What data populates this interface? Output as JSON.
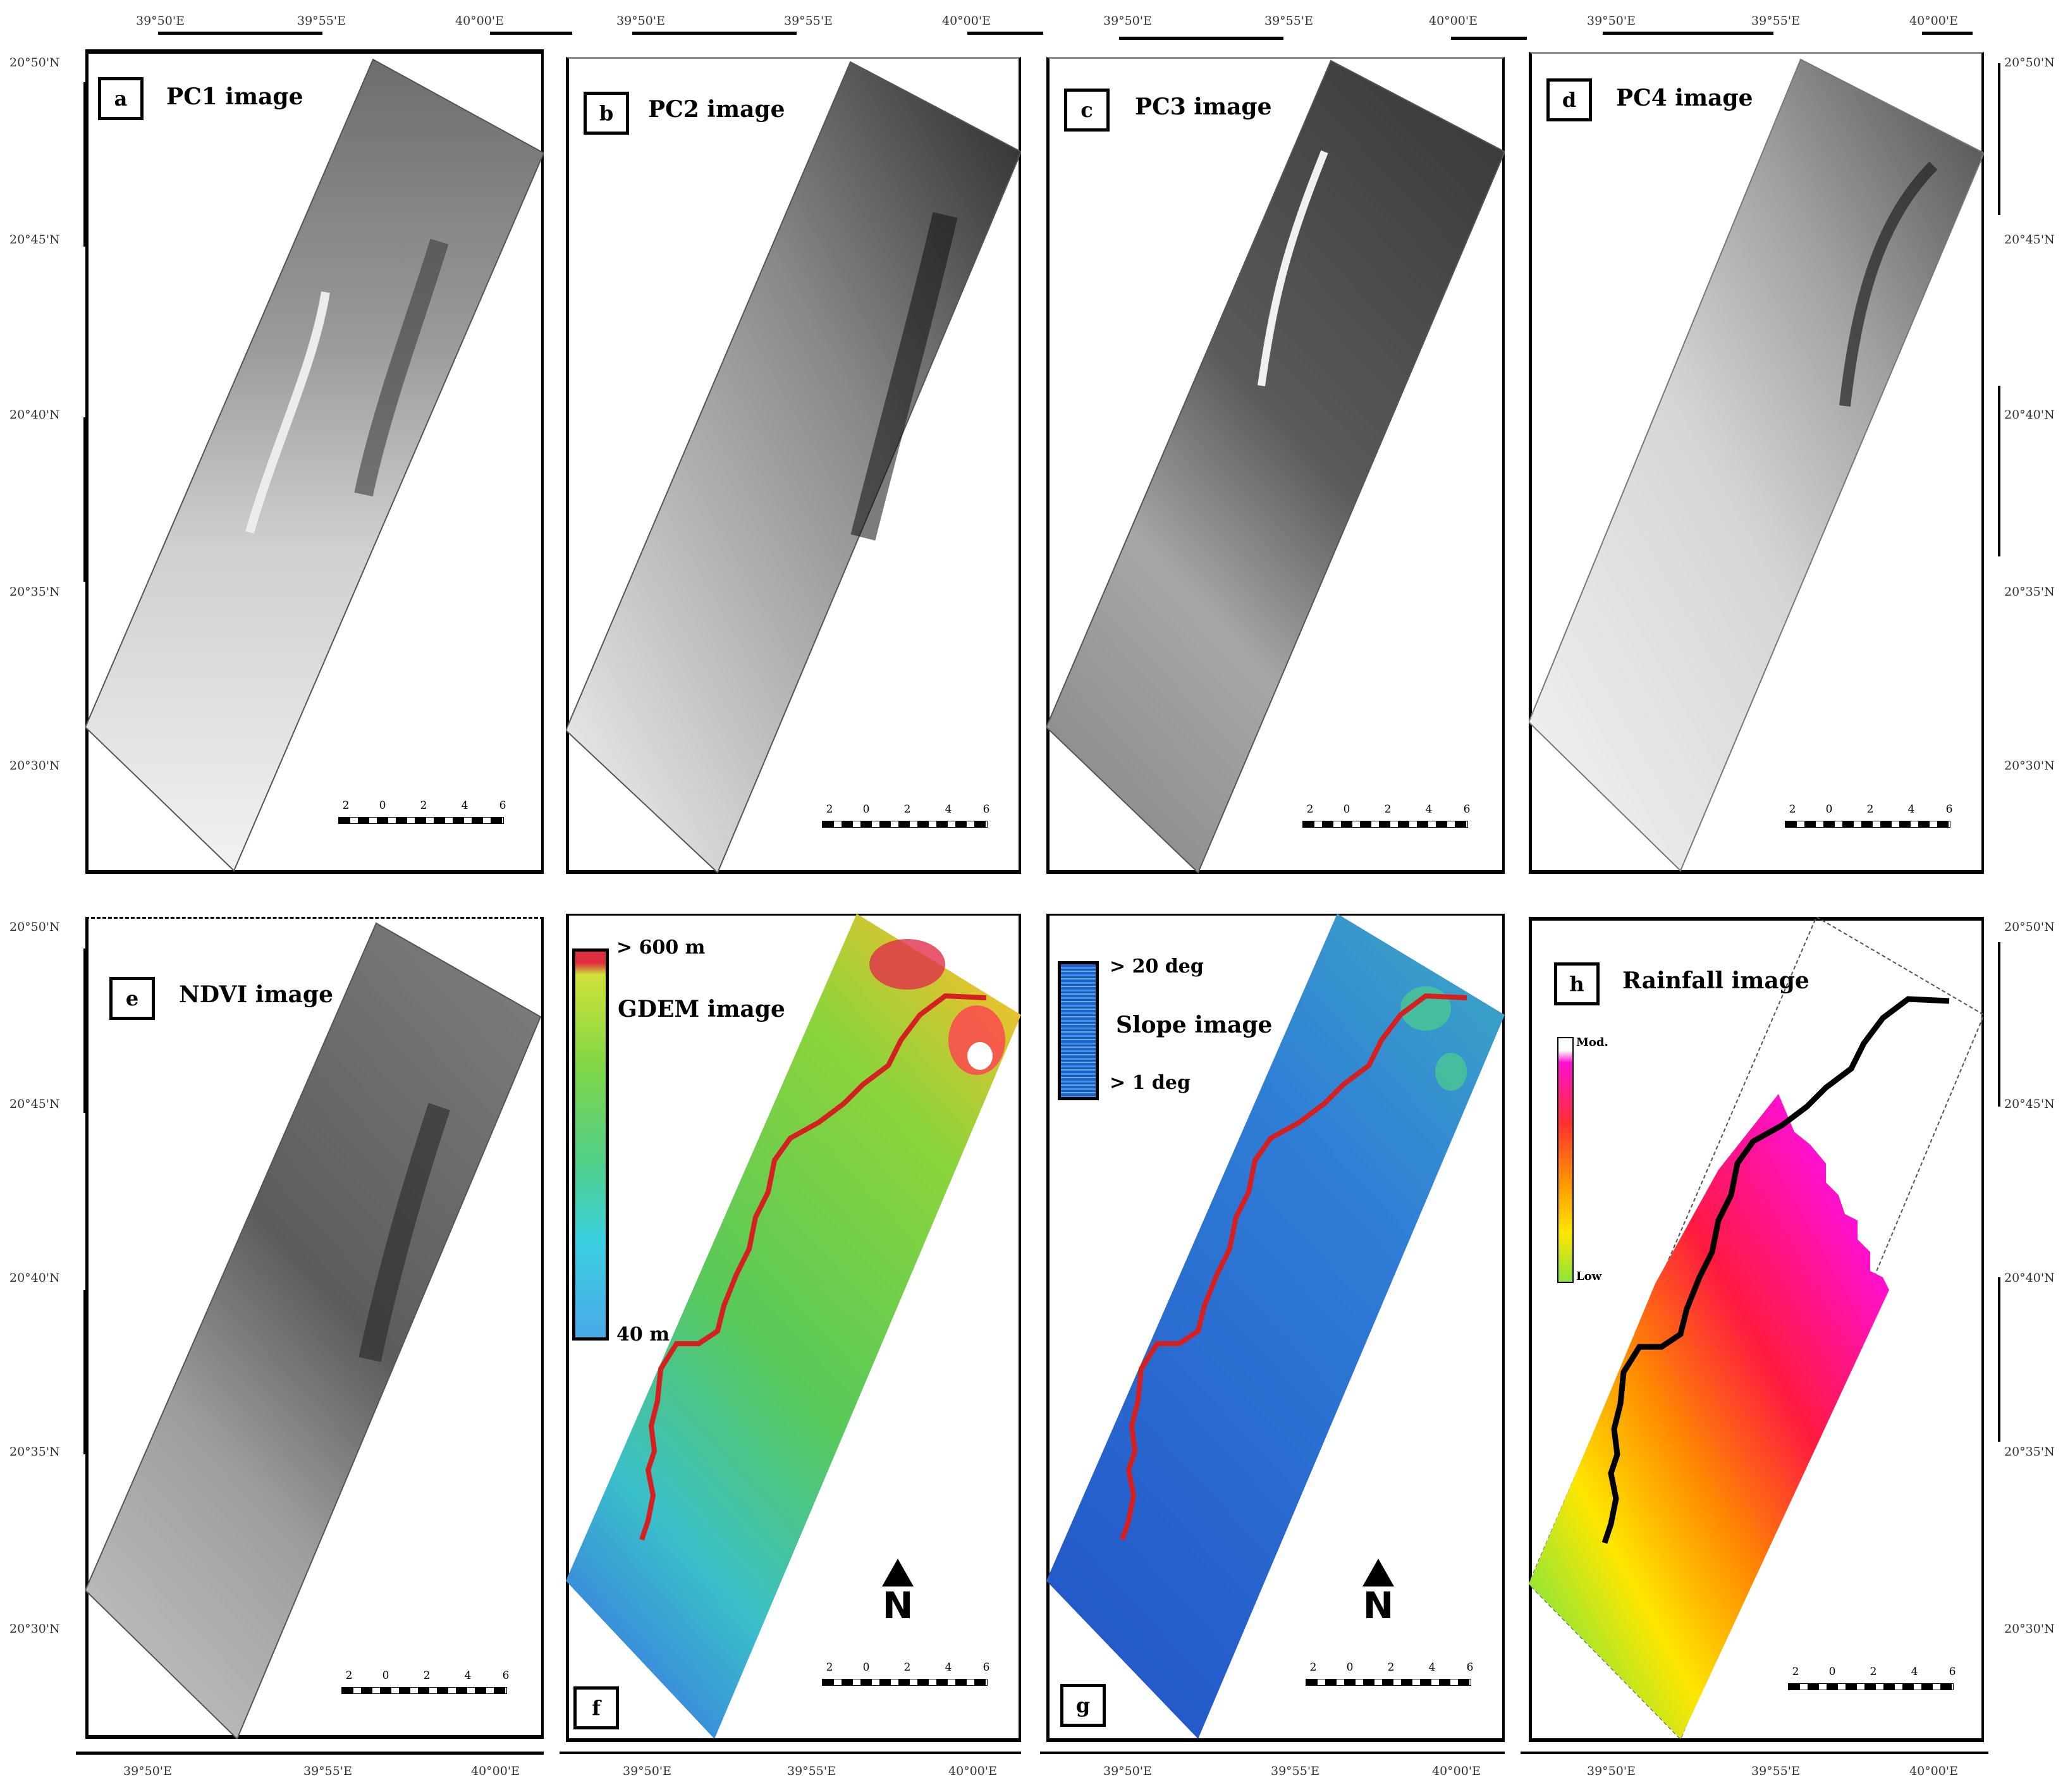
{
  "panels": [
    {
      "letter": "a",
      "title": "PC1 image"
    },
    {
      "letter": "b",
      "title": "PC2 image"
    },
    {
      "letter": "c",
      "title": "PC3 image"
    },
    {
      "letter": "d",
      "title": "PC4 image"
    },
    {
      "letter": "e",
      "title": "NDVI image"
    },
    {
      "letter": "f",
      "title": "GDEM image"
    },
    {
      "letter": "g",
      "title": "Slope image"
    },
    {
      "letter": "h",
      "title": "Rainfall image"
    }
  ],
  "legends": {
    "gdem": {
      "high": "> 600 m",
      "low": "40 m"
    },
    "slope": {
      "high": "> 20 deg",
      "low": "> 1 deg"
    },
    "rainfall": {
      "high": "Mod.",
      "low": "Low"
    }
  },
  "scale_bar": {
    "labels": [
      "2",
      "0",
      "2",
      "4",
      "6"
    ]
  },
  "north_letter": "N",
  "lon_labels": [
    "39°50'E",
    "39°55'E",
    "40°00'E"
  ],
  "lat_labels": [
    "20°50'N",
    "20°45'N",
    "20°40'N",
    "20°35'N",
    "20°30'N"
  ],
  "colors": {
    "route_red": "#d42020",
    "route_black": "#000000"
  }
}
